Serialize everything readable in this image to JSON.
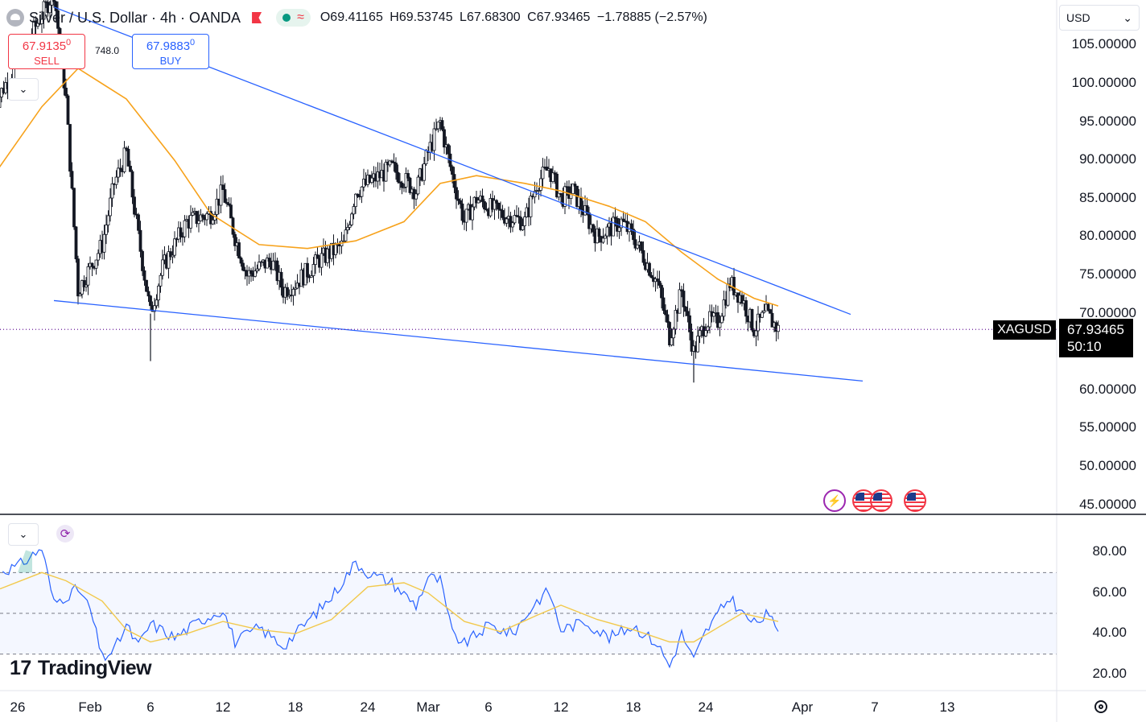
{
  "header": {
    "symbol_title": "Silver / U.S. Dollar · 4h · OANDA",
    "ohlc": {
      "open": "O69.41165",
      "high": "H69.53745",
      "low": "L67.68300",
      "close": "C67.93465",
      "change": "−1.78885 (−2.57%)"
    }
  },
  "trade": {
    "sell_price": "67.9135",
    "sell_price_sup": "0",
    "sell_label": "SELL",
    "buy_price": "67.9883",
    "buy_price_sup": "0",
    "buy_label": "BUY",
    "spread_label": "748.0"
  },
  "currency_select": "USD",
  "price_tag": {
    "symbol": "XAGUSD",
    "price": "67.93465",
    "countdown": "50:10"
  },
  "logo": "TradingView",
  "icons": {
    "legend": "silver-symbol-icon",
    "flag": "flag-icon",
    "status": "market-open-dot-icon",
    "wave": "data-wave-icon",
    "events": [
      "lightning-event-icon",
      "us-flag-event-icon",
      "us-flag-event-icon",
      "us-flag-event-icon"
    ],
    "settings": "settings-icon",
    "refresh": "refresh-icon",
    "collapse": "chevron-down-icon"
  },
  "colors": {
    "up": "#089981",
    "down": "#f23645",
    "candle": "#131722",
    "ma": "#f7a21b",
    "trendline": "#2962ff",
    "rsi_line": "#2962ff",
    "rsi_ma": "#f2c94c",
    "rsi_band": "#2962ff"
  },
  "chart_data": [
    {
      "type": "candlestick",
      "symbol": "XAGUSD",
      "timeframe": "4h",
      "x_ticks": [
        "26",
        "Feb",
        "6",
        "12",
        "18",
        "24",
        "Mar",
        "6",
        "12",
        "18",
        "24",
        "Apr",
        "7",
        "13"
      ],
      "y_ticks": [
        "105.00000",
        "100.00000",
        "95.00000",
        "90.00000",
        "85.00000",
        "80.00000",
        "75.00000",
        "70.00000",
        "65.00000",
        "60.00000",
        "55.00000",
        "50.00000",
        "45.00000"
      ],
      "ylim": [
        45,
        107
      ],
      "close_path": [
        {
          "x": "Jan 24",
          "y": 97
        },
        {
          "x": "Jan 26",
          "y": 103
        },
        {
          "x": "Jan 29",
          "y": 112
        },
        {
          "x": "Jan 30",
          "y": 98
        },
        {
          "x": "Jan 31",
          "y": 73
        },
        {
          "x": "Feb 2",
          "y": 79
        },
        {
          "x": "Feb 3",
          "y": 87
        },
        {
          "x": "Feb 4",
          "y": 91
        },
        {
          "x": "Feb 5",
          "y": 80
        },
        {
          "x": "Feb 6",
          "y": 70
        },
        {
          "x": "Feb 7",
          "y": 76
        },
        {
          "x": "Feb 9",
          "y": 82
        },
        {
          "x": "Feb 11",
          "y": 83
        },
        {
          "x": "Feb 12",
          "y": 86
        },
        {
          "x": "Feb 13",
          "y": 80
        },
        {
          "x": "Feb 14",
          "y": 75
        },
        {
          "x": "Feb 16",
          "y": 77
        },
        {
          "x": "Feb 17",
          "y": 73
        },
        {
          "x": "Feb 18",
          "y": 74
        },
        {
          "x": "Feb 20",
          "y": 77
        },
        {
          "x": "Feb 22",
          "y": 79
        },
        {
          "x": "Feb 23",
          "y": 86
        },
        {
          "x": "Feb 24",
          "y": 87
        },
        {
          "x": "Feb 26",
          "y": 89
        },
        {
          "x": "Feb 28",
          "y": 86
        },
        {
          "x": "Mar 1",
          "y": 91
        },
        {
          "x": "Mar 2",
          "y": 95
        },
        {
          "x": "Mar 3",
          "y": 88
        },
        {
          "x": "Mar 4",
          "y": 82
        },
        {
          "x": "Mar 5",
          "y": 85
        },
        {
          "x": "Mar 7",
          "y": 83
        },
        {
          "x": "Mar 9",
          "y": 82
        },
        {
          "x": "Mar 10",
          "y": 87
        },
        {
          "x": "Mar 11",
          "y": 89
        },
        {
          "x": "Mar 12",
          "y": 85
        },
        {
          "x": "Mar 13",
          "y": 86
        },
        {
          "x": "Mar 14",
          "y": 83
        },
        {
          "x": "Mar 15",
          "y": 80
        },
        {
          "x": "Mar 17",
          "y": 82
        },
        {
          "x": "Mar 18",
          "y": 80
        },
        {
          "x": "Mar 19",
          "y": 77
        },
        {
          "x": "Mar 20",
          "y": 74
        },
        {
          "x": "Mar 21",
          "y": 67
        },
        {
          "x": "Mar 22",
          "y": 73
        },
        {
          "x": "Mar 23",
          "y": 65
        },
        {
          "x": "Mar 24",
          "y": 69
        },
        {
          "x": "Mar 25",
          "y": 69
        },
        {
          "x": "Mar 26",
          "y": 74
        },
        {
          "x": "Mar 27",
          "y": 72
        },
        {
          "x": "Mar 28",
          "y": 68
        },
        {
          "x": "Mar 29",
          "y": 70
        },
        {
          "x": "Mar 30",
          "y": 67.93
        }
      ],
      "moving_average": [
        {
          "x": "Jan 24",
          "y": 88
        },
        {
          "x": "Jan 28",
          "y": 97
        },
        {
          "x": "Jan 31",
          "y": 102
        },
        {
          "x": "Feb 4",
          "y": 98
        },
        {
          "x": "Feb 8",
          "y": 90
        },
        {
          "x": "Feb 11",
          "y": 83
        },
        {
          "x": "Feb 15",
          "y": 79
        },
        {
          "x": "Feb 19",
          "y": 78.5
        },
        {
          "x": "Feb 23",
          "y": 79.5
        },
        {
          "x": "Feb 27",
          "y": 82
        },
        {
          "x": "Mar 2",
          "y": 87
        },
        {
          "x": "Mar 5",
          "y": 88
        },
        {
          "x": "Mar 9",
          "y": 87
        },
        {
          "x": "Mar 12",
          "y": 86
        },
        {
          "x": "Mar 16",
          "y": 84
        },
        {
          "x": "Mar 19",
          "y": 82
        },
        {
          "x": "Mar 22",
          "y": 78
        },
        {
          "x": "Mar 25",
          "y": 74.5
        },
        {
          "x": "Mar 28",
          "y": 72
        },
        {
          "x": "Mar 30",
          "y": 71
        }
      ],
      "trendlines": [
        {
          "name": "upper",
          "points": [
            {
              "x": "Jan 29",
              "y": 110
            },
            {
              "x": "Apr 5",
              "y": 69.9
            }
          ]
        },
        {
          "name": "lower",
          "points": [
            {
              "x": "Jan 29",
              "y": 71.7
            },
            {
              "x": "Apr 6",
              "y": 61.2
            }
          ]
        }
      ],
      "last_price": 67.93465
    },
    {
      "type": "line",
      "name": "RSI",
      "y_ticks": [
        "80.00",
        "60.00",
        "40.00",
        "20.00"
      ],
      "ylim": [
        12,
        92
      ],
      "band": [
        30,
        70
      ],
      "midline": 50,
      "rsi": [
        {
          "x": "Jan 24",
          "y": 70
        },
        {
          "x": "Jan 26",
          "y": 73
        },
        {
          "x": "Jan 28",
          "y": 82
        },
        {
          "x": "Jan 29",
          "y": 55
        },
        {
          "x": "Jan 31",
          "y": 62
        },
        {
          "x": "Feb 1",
          "y": 52
        },
        {
          "x": "Feb 2",
          "y": 28
        },
        {
          "x": "Feb 3",
          "y": 32
        },
        {
          "x": "Feb 4",
          "y": 44
        },
        {
          "x": "Feb 5",
          "y": 34
        },
        {
          "x": "Feb 6",
          "y": 45
        },
        {
          "x": "Feb 8",
          "y": 38
        },
        {
          "x": "Feb 10",
          "y": 46
        },
        {
          "x": "Feb 12",
          "y": 52
        },
        {
          "x": "Feb 13",
          "y": 36
        },
        {
          "x": "Feb 15",
          "y": 43
        },
        {
          "x": "Feb 17",
          "y": 34
        },
        {
          "x": "Feb 19",
          "y": 46
        },
        {
          "x": "Feb 21",
          "y": 58
        },
        {
          "x": "Feb 23",
          "y": 75
        },
        {
          "x": "Feb 24",
          "y": 70
        },
        {
          "x": "Feb 26",
          "y": 65
        },
        {
          "x": "Feb 28",
          "y": 54
        },
        {
          "x": "Mar 1",
          "y": 68
        },
        {
          "x": "Mar 2",
          "y": 66
        },
        {
          "x": "Mar 3",
          "y": 40
        },
        {
          "x": "Mar 4",
          "y": 35
        },
        {
          "x": "Mar 6",
          "y": 44
        },
        {
          "x": "Mar 8",
          "y": 40
        },
        {
          "x": "Mar 10",
          "y": 56
        },
        {
          "x": "Mar 11",
          "y": 61
        },
        {
          "x": "Mar 12",
          "y": 42
        },
        {
          "x": "Mar 14",
          "y": 46
        },
        {
          "x": "Mar 16",
          "y": 38
        },
        {
          "x": "Mar 18",
          "y": 44
        },
        {
          "x": "Mar 20",
          "y": 35
        },
        {
          "x": "Mar 21",
          "y": 24
        },
        {
          "x": "Mar 22",
          "y": 40
        },
        {
          "x": "Mar 23",
          "y": 27
        },
        {
          "x": "Mar 24",
          "y": 41
        },
        {
          "x": "Mar 26",
          "y": 58
        },
        {
          "x": "Mar 27",
          "y": 50
        },
        {
          "x": "Mar 28",
          "y": 45
        },
        {
          "x": "Mar 29",
          "y": 49
        },
        {
          "x": "Mar 30",
          "y": 43
        }
      ],
      "rsi_ma": [
        {
          "x": "Jan 24",
          "y": 62
        },
        {
          "x": "Jan 28",
          "y": 70
        },
        {
          "x": "Jan 30",
          "y": 66
        },
        {
          "x": "Feb 2",
          "y": 56
        },
        {
          "x": "Feb 4",
          "y": 42
        },
        {
          "x": "Feb 6",
          "y": 36
        },
        {
          "x": "Feb 9",
          "y": 40
        },
        {
          "x": "Feb 12",
          "y": 46
        },
        {
          "x": "Feb 15",
          "y": 42
        },
        {
          "x": "Feb 18",
          "y": 40
        },
        {
          "x": "Feb 21",
          "y": 47
        },
        {
          "x": "Feb 24",
          "y": 63
        },
        {
          "x": "Feb 27",
          "y": 65
        },
        {
          "x": "Mar 1",
          "y": 60
        },
        {
          "x": "Mar 4",
          "y": 46
        },
        {
          "x": "Mar 7",
          "y": 41
        },
        {
          "x": "Mar 10",
          "y": 49
        },
        {
          "x": "Mar 12",
          "y": 54
        },
        {
          "x": "Mar 15",
          "y": 47
        },
        {
          "x": "Mar 18",
          "y": 42
        },
        {
          "x": "Mar 21",
          "y": 36
        },
        {
          "x": "Mar 23",
          "y": 36
        },
        {
          "x": "Mar 25",
          "y": 43
        },
        {
          "x": "Mar 27",
          "y": 50
        },
        {
          "x": "Mar 30",
          "y": 46
        }
      ]
    }
  ]
}
